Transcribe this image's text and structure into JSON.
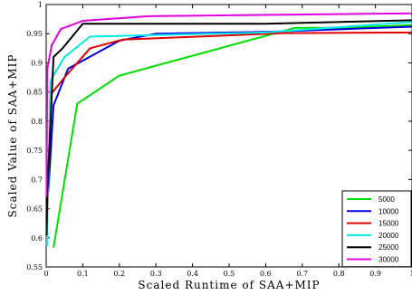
{
  "chart_data": {
    "type": "line",
    "title": "",
    "xlabel": "Scaled Runtime of SAA+MIP",
    "ylabel": "Scaled Value of SAA+MIP",
    "xlim": [
      0,
      1
    ],
    "ylim": [
      0.55,
      1
    ],
    "xticks": [
      "0",
      "0.1",
      "0.2",
      "0.3",
      "0.4",
      "0.5",
      "0.6",
      "0.7",
      "0.8",
      "0.9",
      "1"
    ],
    "yticks": [
      "0.55",
      "0.6",
      "0.65",
      "0.7",
      "0.75",
      "0.8",
      "0.85",
      "0.9",
      "0.95",
      "1"
    ],
    "grid": false,
    "legend_position": "bottom-right",
    "series": [
      {
        "name": "5000",
        "color": "#00e000",
        "x": [
          0.02,
          0.085,
          0.2,
          0.68,
          0.82,
          1.0
        ],
        "y": [
          0.583,
          0.83,
          0.878,
          0.96,
          0.96,
          0.965
        ]
      },
      {
        "name": "10000",
        "color": "#0000e0",
        "x": [
          0.006,
          0.02,
          0.06,
          0.2,
          0.3,
          0.6,
          1.0
        ],
        "y": [
          0.68,
          0.827,
          0.89,
          0.938,
          0.95,
          0.953,
          0.962
        ]
      },
      {
        "name": "15000",
        "color": "#e00000",
        "x": [
          0.004,
          0.015,
          0.05,
          0.12,
          0.21,
          0.65,
          1.0
        ],
        "y": [
          0.69,
          0.848,
          0.875,
          0.925,
          0.94,
          0.951,
          0.952
        ]
      },
      {
        "name": "20000",
        "color": "#00e8e8",
        "x": [
          0.002,
          0.012,
          0.05,
          0.12,
          0.6,
          1.0
        ],
        "y": [
          0.585,
          0.87,
          0.91,
          0.945,
          0.952,
          0.97
        ]
      },
      {
        "name": "25000",
        "color": "#000000",
        "x": [
          0.001,
          0.003,
          0.02,
          0.045,
          0.1,
          0.6,
          1.0
        ],
        "y": [
          0.604,
          0.675,
          0.91,
          0.925,
          0.967,
          0.967,
          0.973
        ]
      },
      {
        "name": "30000",
        "color": "#e000e0",
        "x": [
          0.001,
          0.003,
          0.015,
          0.04,
          0.1,
          0.28,
          1.0
        ],
        "y": [
          0.67,
          0.89,
          0.93,
          0.958,
          0.972,
          0.98,
          0.985
        ]
      }
    ]
  }
}
